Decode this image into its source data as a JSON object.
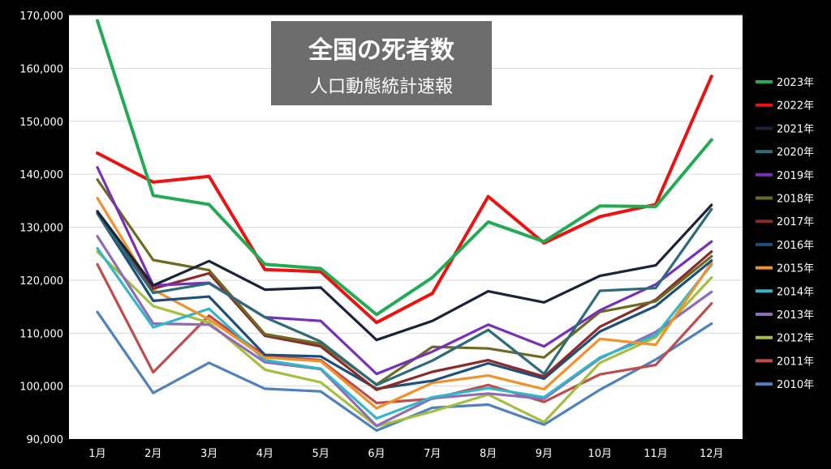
{
  "chart_data": {
    "type": "line",
    "title": "全国の死者数",
    "subtitle": "人口動態統計速報",
    "xlabel": "",
    "ylabel": "",
    "categories": [
      "1月",
      "2月",
      "3月",
      "4月",
      "5月",
      "6月",
      "7月",
      "8月",
      "9月",
      "10月",
      "11月",
      "12月"
    ],
    "ylim": [
      90000,
      170000
    ],
    "yticks": [
      90000,
      100000,
      110000,
      120000,
      130000,
      140000,
      150000,
      160000,
      170000
    ],
    "ytick_labels": [
      "90,000",
      "100,000",
      "110,000",
      "120,000",
      "130,000",
      "140,000",
      "150,000",
      "160,000",
      "170,000"
    ],
    "grid": true,
    "legend_position": "right",
    "series": [
      {
        "name": "2023年",
        "color": "#22aa55",
        "values": [
          169000,
          136000,
          134300,
          123000,
          122200,
          113500,
          120500,
          131000,
          127300,
          134000,
          133900,
          146500
        ]
      },
      {
        "name": "2022年",
        "color": "#ee1111",
        "values": [
          144000,
          138500,
          139600,
          122000,
          121600,
          112000,
          117500,
          135800,
          127000,
          132000,
          134300,
          158500
        ]
      },
      {
        "name": "2021年",
        "color": "#1a2338",
        "values": [
          133000,
          119000,
          123600,
          118200,
          118600,
          108700,
          112300,
          117900,
          115800,
          120800,
          122800,
          134200
        ]
      },
      {
        "name": "2020年",
        "color": "#2e6b7a",
        "values": [
          132600,
          117600,
          119400,
          113000,
          108400,
          100200,
          104800,
          110600,
          102300,
          118000,
          118500,
          133400
        ]
      },
      {
        "name": "2019年",
        "color": "#7a2fb8",
        "values": [
          141300,
          119000,
          119500,
          113000,
          112300,
          102300,
          106500,
          111600,
          107500,
          114300,
          119200,
          127300
        ]
      },
      {
        "name": "2018年",
        "color": "#6b6b22",
        "values": [
          139000,
          123800,
          121900,
          109800,
          108000,
          100300,
          107400,
          107100,
          105400,
          114000,
          116000,
          124500
        ]
      },
      {
        "name": "2017年",
        "color": "#8a2a2a",
        "values": [
          133000,
          118400,
          121300,
          109500,
          107500,
          99300,
          102700,
          104900,
          101800,
          111200,
          116300,
          125400
        ]
      },
      {
        "name": "2016年",
        "color": "#1e4f7a",
        "values": [
          132600,
          116100,
          116900,
          105900,
          105600,
          99500,
          101000,
          104300,
          101400,
          110300,
          115100,
          123700
        ]
      },
      {
        "name": "2015年",
        "color": "#f0922b",
        "values": [
          135500,
          118200,
          112600,
          105400,
          104700,
          95800,
          100600,
          102000,
          99400,
          108900,
          107800,
          123300
        ]
      },
      {
        "name": "2014年",
        "color": "#33b6c9",
        "values": [
          126000,
          111100,
          114600,
          104900,
          103300,
          93900,
          97900,
          99600,
          97900,
          105400,
          109600,
          122900
        ]
      },
      {
        "name": "2013年",
        "color": "#8e6cb8",
        "values": [
          128300,
          111800,
          111600,
          104500,
          103200,
          92500,
          97700,
          98600,
          97600,
          105200,
          110200,
          117800
        ]
      },
      {
        "name": "2012年",
        "color": "#a3bf3f",
        "values": [
          125400,
          115100,
          112000,
          103100,
          100700,
          92400,
          95200,
          98400,
          93200,
          104400,
          109200,
          120500
        ]
      },
      {
        "name": "2011年",
        "color": "#c04d4d",
        "values": [
          123000,
          102600,
          113300,
          105700,
          104900,
          96800,
          97600,
          100200,
          97000,
          102200,
          104000,
          115600
        ]
      },
      {
        "name": "2010年",
        "color": "#4f81bd",
        "values": [
          114000,
          98700,
          104400,
          99500,
          99000,
          91600,
          95900,
          96500,
          92700,
          99300,
          105000,
          111800
        ]
      }
    ]
  }
}
